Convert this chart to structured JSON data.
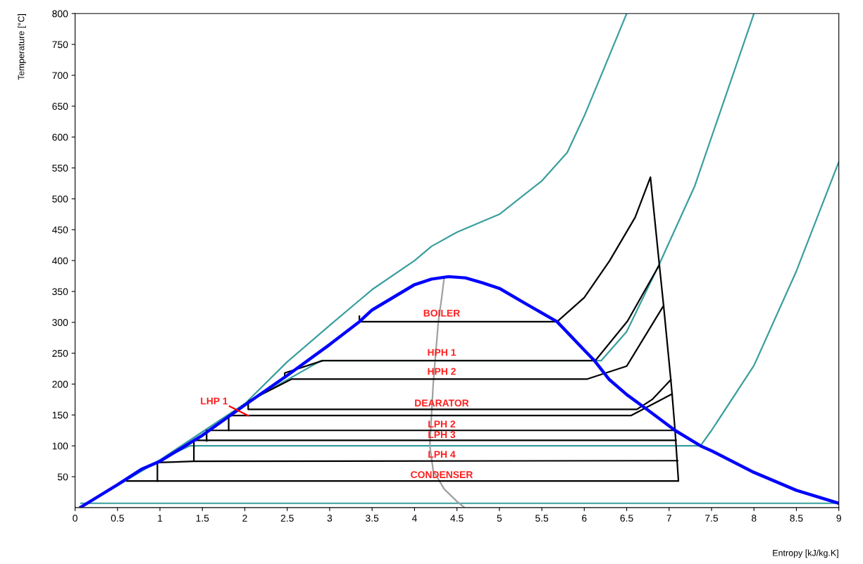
{
  "chart_data": {
    "type": "line",
    "xlabel": "Entropy [kJ/kg.K]",
    "ylabel": "Temperature [°C]",
    "xlim": [
      0,
      9
    ],
    "xticks": [
      0,
      0.5,
      1,
      1.5,
      2,
      2.5,
      3,
      3.5,
      4,
      4.5,
      5,
      5.5,
      6,
      6.5,
      7,
      7.5,
      8,
      8.5,
      9
    ],
    "ylim": [
      0,
      800
    ],
    "yticks": [
      50,
      100,
      150,
      200,
      250,
      300,
      350,
      400,
      450,
      500,
      550,
      600,
      650,
      700,
      750,
      800
    ],
    "grid": false,
    "legend": false,
    "marker": "none",
    "line_style": "solid",
    "series": [
      {
        "color": "#3a9e9e",
        "x": [
          0.07,
          1,
          2,
          2.5,
          3,
          3.5,
          4,
          4.2,
          4.5,
          5,
          5.5,
          5.8,
          6,
          6.2,
          6.5
        ],
        "values": [
          1,
          77,
          168,
          236,
          295,
          353,
          400,
          423,
          446,
          475,
          529,
          575,
          634,
          700,
          800
        ]
      },
      {
        "color": "#3a9e9e",
        "x": [
          0.07,
          1,
          2,
          2.9,
          6.2,
          6.5,
          6.88,
          7.3,
          7.6,
          8
        ],
        "values": [
          1,
          77,
          168,
          238,
          238,
          285,
          393,
          520,
          640,
          800
        ]
      },
      {
        "color": "#3a9e9e",
        "x": [
          0.07,
          1,
          1.35,
          7.37,
          7.5,
          8,
          8.5,
          9
        ],
        "values": [
          1,
          77,
          100,
          100,
          125,
          230,
          383,
          560
        ]
      },
      {
        "color": "#3a9e9e",
        "x": [
          0.07,
          9
        ],
        "values": [
          7,
          7
        ]
      },
      {
        "color": "#a0a0a0",
        "x": [
          4.35,
          4.32,
          4.28,
          4.25,
          4.22,
          4.2,
          4.18,
          4.22,
          4.35,
          4.5,
          4.58
        ],
        "values": [
          373,
          340,
          300,
          250,
          200,
          150,
          100,
          60,
          30,
          10,
          1
        ]
      },
      {
        "color": "#000000",
        "x": [
          3.35,
          3.35,
          5.68,
          6,
          6.3,
          6.6,
          6.78,
          6.885,
          6.935,
          7.02,
          7.035,
          7.07,
          7.11,
          0.61
        ],
        "values": [
          310,
          301,
          301,
          340,
          400,
          470,
          535,
          393,
          327,
          207,
          184,
          125,
          43,
          43
        ]
      },
      {
        "color": "#000000",
        "x": [
          2.47,
          2.47,
          2.92,
          6.13,
          6.51,
          6.885
        ],
        "values": [
          210,
          218,
          238,
          238,
          302,
          393
        ]
      },
      {
        "color": "#000000",
        "x": [
          2.05,
          2.55,
          6.03,
          6.5,
          6.935
        ],
        "values": [
          173,
          208,
          208,
          229,
          327
        ]
      },
      {
        "color": "#000000",
        "x": [
          2.04,
          2.04,
          6.62,
          6.8,
          7.02
        ],
        "values": [
          168,
          159,
          159,
          175,
          207
        ]
      },
      {
        "color": "#000000",
        "x": [
          1.81,
          1.81,
          6.55,
          7.035
        ],
        "values": [
          125,
          149,
          149,
          184
        ]
      },
      {
        "color": "#000000",
        "x": [
          1.55,
          1.55,
          7.07
        ],
        "values": [
          108,
          125,
          125
        ]
      },
      {
        "color": "#000000",
        "x": [
          1.4,
          1.4,
          7.08
        ],
        "values": [
          76,
          109,
          109
        ]
      },
      {
        "color": "#000000",
        "x": [
          0.97,
          0.97,
          1.4,
          7.1
        ],
        "values": [
          43,
          73,
          75,
          76
        ]
      },
      {
        "color": "#0000ff",
        "x": [
          0.07,
          0.5,
          0.78,
          1,
          1.5,
          2,
          2.5,
          3,
          3.35,
          3.5,
          4,
          4.2,
          4.4,
          4.6,
          4.8,
          5,
          5.3,
          5.68,
          6,
          6.12,
          6.29,
          6.5,
          6.74,
          7.07,
          7.37,
          7.5,
          8,
          8.5,
          9
        ],
        "values": [
          1,
          37,
          62,
          75,
          117,
          166,
          214,
          264,
          301,
          320,
          361,
          370,
          374,
          372,
          364,
          355,
          331,
          301,
          255,
          238,
          208,
          183,
          159,
          125,
          100,
          92,
          57,
          28,
          7
        ]
      },
      {
        "color": "#ff0000",
        "x": [
          1.82,
          2.04
        ],
        "values": [
          164,
          149
        ]
      }
    ],
    "annotations": [
      "BOILER",
      "HPH 1",
      "HPH 2",
      "DEARATOR",
      "LPH 2",
      "LPH 3",
      "LPH 4",
      "CONDENSER",
      "LHP 1"
    ]
  }
}
